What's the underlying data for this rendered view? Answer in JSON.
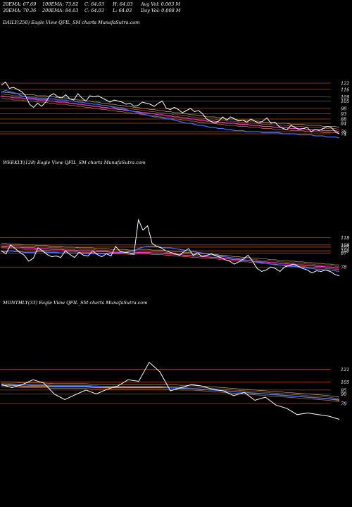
{
  "header": {
    "row1": [
      "20EMA: 67.69",
      "100EMA: 73.82",
      "C: 64.03",
      "H: 64.03",
      "Avg Vol: 0.003 M"
    ],
    "row2": [
      "30EMA: 70.36",
      "200EMA: 84.63",
      "C: 64.03",
      "L: 64.03",
      "Day Vol: 0.008 M"
    ]
  },
  "chart_data": [
    {
      "type": "line",
      "title": "DAILY(250) Eagle  View  QFIL_SM charts MunafaSutra.com",
      "level_labels": [
        "122",
        "116",
        "109",
        "105",
        "98",
        "93",
        "88",
        "84",
        "76",
        "74"
      ],
      "series": [
        {
          "color": "#ffffff",
          "values": [
            120,
            123,
            117,
            118,
            116,
            114,
            110,
            102,
            99,
            103,
            100,
            104,
            110,
            112,
            109,
            108,
            111,
            107,
            106,
            112,
            108,
            105,
            110,
            109,
            110,
            108,
            106,
            104,
            106,
            105,
            104,
            102,
            103,
            100,
            101,
            104,
            103,
            102,
            100,
            103,
            105,
            98,
            97,
            99,
            97,
            94,
            96,
            98,
            95,
            96,
            93,
            88,
            86,
            84,
            86,
            90,
            87,
            90,
            88,
            86,
            87,
            85,
            88,
            86,
            84,
            86,
            89,
            84,
            85,
            81,
            79,
            78,
            82,
            80,
            78,
            79,
            80,
            76,
            78,
            77,
            79,
            81,
            80,
            76,
            74
          ]
        },
        {
          "color": "#3f6fff",
          "values": [
            113,
            115,
            114,
            113,
            112,
            110,
            109,
            108,
            108,
            107,
            107,
            107,
            107,
            107,
            106,
            106,
            106,
            105,
            105,
            104,
            104,
            103,
            103,
            102,
            102,
            101,
            101,
            100,
            99,
            98,
            98,
            97,
            96,
            95,
            94,
            93,
            92,
            91,
            90,
            90,
            89,
            88,
            88,
            87,
            86,
            85,
            84,
            84,
            83,
            82,
            82,
            81,
            80,
            80,
            79,
            79,
            78,
            78,
            77,
            77,
            77,
            76,
            76,
            76,
            76,
            75,
            75,
            75,
            75,
            75,
            74,
            74,
            74,
            74,
            73,
            73,
            73,
            73,
            72,
            72,
            72,
            71,
            71,
            71,
            70
          ]
        },
        {
          "color": "#ff33cc",
          "values": [
            110,
            109,
            109,
            108,
            108,
            108,
            107,
            107,
            107,
            106,
            106,
            106,
            105,
            105,
            104,
            104,
            104,
            103,
            103,
            102,
            102,
            101,
            101,
            100,
            100,
            99,
            99,
            98,
            98,
            97,
            97,
            96,
            96,
            95,
            95,
            94,
            94,
            93,
            93,
            92,
            92,
            91,
            91,
            90,
            90,
            89,
            89,
            88,
            88,
            87,
            87,
            86,
            86,
            86,
            85,
            85,
            84,
            84,
            84,
            83,
            83,
            83,
            82,
            82,
            82,
            81,
            81,
            81,
            80,
            80,
            80,
            80,
            79,
            79,
            79,
            79,
            78,
            78,
            78,
            78,
            77,
            77,
            77,
            77,
            76
          ]
        }
      ]
    },
    {
      "type": "line",
      "title": "WEEKLY(128) Eagle  View  QFIL_SM charts MunafaSutra.com",
      "level_labels": [
        "118",
        "108",
        "105",
        "100",
        "97",
        "78"
      ],
      "series": [
        {
          "color": "#ffffff",
          "values": [
            100,
            96,
            108,
            103,
            98,
            94,
            86,
            90,
            104,
            100,
            95,
            92,
            93,
            91,
            100,
            95,
            91,
            98,
            94,
            93,
            100,
            95,
            92,
            96,
            93,
            106,
            99,
            98,
            97,
            95,
            142,
            128,
            134,
            110,
            106,
            104,
            100,
            98,
            96,
            94,
            99,
            103,
            94,
            97,
            92,
            94,
            96,
            93,
            91,
            88,
            86,
            82,
            85,
            89,
            94,
            86,
            76,
            72,
            74,
            78,
            76,
            72,
            78,
            80,
            82,
            79,
            76,
            74,
            70,
            73,
            72,
            74,
            72,
            68,
            66
          ]
        },
        {
          "color": "#3f6fff",
          "values": [
            99,
            99,
            100,
            99,
            99,
            98,
            98,
            98,
            99,
            99,
            98,
            98,
            98,
            97,
            97,
            97,
            97,
            97,
            96,
            96,
            96,
            96,
            96,
            96,
            96,
            97,
            97,
            98,
            99,
            100,
            103,
            105,
            106,
            106,
            106,
            105,
            104,
            104,
            103,
            102,
            101,
            100,
            99,
            98,
            97,
            96,
            95,
            94,
            93,
            92,
            91,
            90,
            89,
            88,
            87,
            86,
            85,
            84,
            83,
            82,
            81,
            81,
            80,
            79,
            79,
            78,
            77,
            77,
            76,
            75,
            75,
            74,
            74,
            73,
            72
          ]
        },
        {
          "color": "#ff33cc",
          "values": [
            106,
            106,
            105,
            105,
            105,
            104,
            104,
            104,
            103,
            103,
            103,
            102,
            102,
            102,
            101,
            101,
            101,
            100,
            100,
            100,
            100,
            99,
            99,
            99,
            98,
            98,
            98,
            98,
            97,
            97,
            98,
            98,
            98,
            97,
            97,
            97,
            96,
            96,
            95,
            95,
            94,
            94,
            93,
            93,
            92,
            92,
            91,
            91,
            90,
            90,
            89,
            88,
            88,
            87,
            87,
            86,
            86,
            85,
            85,
            84,
            84,
            83,
            83,
            82,
            82,
            81,
            81,
            80,
            80,
            79,
            79,
            78,
            78,
            77,
            77
          ]
        }
      ]
    },
    {
      "type": "line",
      "title": "MONTHLY(33) Eagle  View  QFIL_SM charts MunafaSutra.com",
      "level_labels": [
        "121",
        "105",
        "95",
        "90",
        "78"
      ],
      "series": [
        {
          "color": "#ffffff",
          "values": [
            102,
            98,
            102,
            108,
            104,
            90,
            83,
            89,
            95,
            90,
            96,
            100,
            108,
            106,
            130,
            118,
            94,
            98,
            102,
            100,
            96,
            94,
            88,
            92,
            82,
            86,
            76,
            72,
            64,
            66,
            64,
            62,
            58
          ]
        },
        {
          "color": "#3f6fff",
          "values": [
            103,
            102,
            102,
            101,
            101,
            100,
            100,
            100,
            100,
            100,
            99,
            99,
            99,
            99,
            99,
            99,
            98,
            98,
            97,
            96,
            95,
            94,
            93,
            92,
            91,
            90,
            89,
            88,
            87,
            86,
            85,
            84,
            83
          ]
        },
        {
          "color": "#d9a05b",
          "values": [
            101,
            101,
            100,
            100,
            100,
            99,
            99,
            99,
            99,
            98,
            98,
            98,
            98,
            98,
            98,
            98,
            98,
            97,
            97,
            96,
            95,
            94,
            93,
            92,
            91,
            90,
            89,
            88,
            87,
            86,
            85,
            84,
            82
          ]
        }
      ]
    }
  ]
}
